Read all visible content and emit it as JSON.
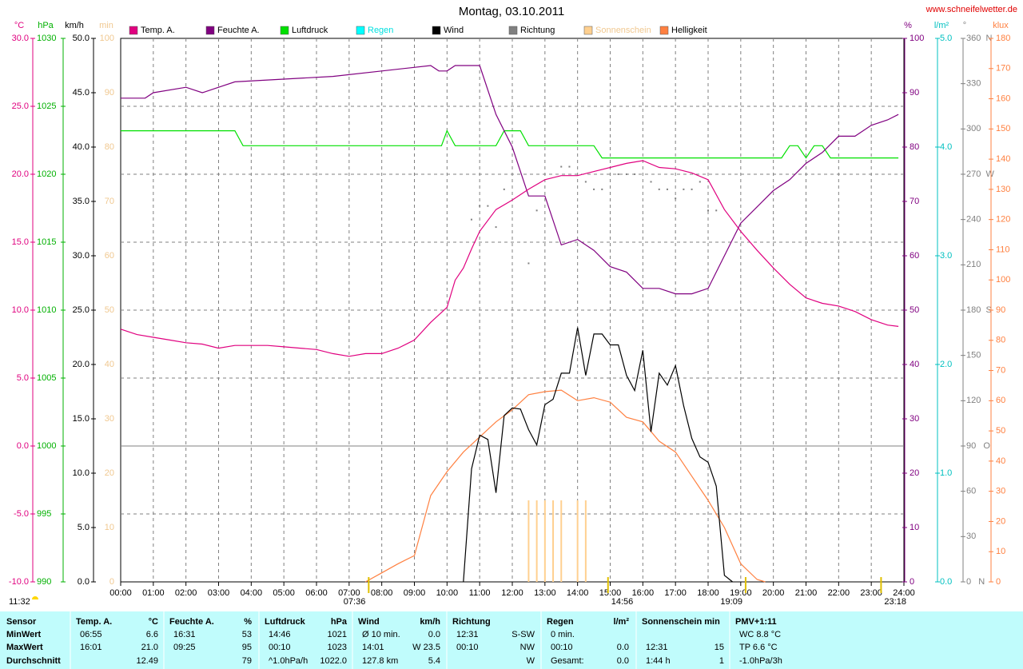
{
  "chart_data": {
    "type": "line",
    "title": "Montag, 03.10.2011",
    "source": "www.schneifelwetter.de",
    "xlim": [
      0,
      24
    ],
    "xticks": [
      {
        "value": 0,
        "label": "00:00"
      },
      {
        "value": 1,
        "label": "01:00"
      },
      {
        "value": 2,
        "label": "02:00"
      },
      {
        "value": 3,
        "label": "03:00"
      },
      {
        "value": 4,
        "label": "04:00"
      },
      {
        "value": 5,
        "label": "05:00"
      },
      {
        "value": 6,
        "label": "06:00"
      },
      {
        "value": 7,
        "label": "07:00"
      },
      {
        "value": 8,
        "label": "08:00"
      },
      {
        "value": 9,
        "label": "09:00"
      },
      {
        "value": 10,
        "label": "10:00"
      },
      {
        "value": 11,
        "label": "11:00"
      },
      {
        "value": 12,
        "label": "12:00"
      },
      {
        "value": 13,
        "label": "13:00"
      },
      {
        "value": 14,
        "label": "14:00"
      },
      {
        "value": 15,
        "label": "15:00"
      },
      {
        "value": 16,
        "label": "16:00"
      },
      {
        "value": 17,
        "label": "17:00"
      },
      {
        "value": 18,
        "label": "18:00"
      },
      {
        "value": 19,
        "label": "19:00"
      },
      {
        "value": 20,
        "label": "20:00"
      },
      {
        "value": 21,
        "label": "21:00"
      },
      {
        "value": 22,
        "label": "22:00"
      },
      {
        "value": 23,
        "label": "23:00"
      },
      {
        "value": 24,
        "label": "24:00"
      }
    ],
    "grid": true,
    "axes": [
      {
        "id": "temp",
        "unit": "°C",
        "color": "#e0007f",
        "ylim": [
          -10,
          30
        ],
        "yticks": [
          {
            "value": -10,
            "label": "-10.0"
          },
          {
            "value": -5,
            "label": "-5.0"
          },
          {
            "value": 0,
            "label": "0.0"
          },
          {
            "value": 5,
            "label": "5.0"
          },
          {
            "value": 10,
            "label": "10.0"
          },
          {
            "value": 15,
            "label": "15.0"
          },
          {
            "value": 20,
            "label": "20.0"
          },
          {
            "value": 25,
            "label": "25.0"
          },
          {
            "value": 30,
            "label": "30.0"
          }
        ]
      },
      {
        "id": "hpa",
        "unit": "hPa",
        "color": "#00b000",
        "ylim": [
          990,
          1030
        ],
        "yticks": [
          990,
          995,
          1000,
          1005,
          1010,
          1015,
          1020,
          1025,
          1030
        ]
      },
      {
        "id": "kmh",
        "unit": "km/h",
        "color": "#000000",
        "ylim": [
          0,
          50
        ],
        "yticks": [
          {
            "value": 0,
            "label": "0.0"
          },
          {
            "value": 5,
            "label": "5.0"
          },
          {
            "value": 10,
            "label": "10.0"
          },
          {
            "value": 15,
            "label": "15.0"
          },
          {
            "value": 20,
            "label": "20.0"
          },
          {
            "value": 25,
            "label": "25.0"
          },
          {
            "value": 30,
            "label": "30.0"
          },
          {
            "value": 35,
            "label": "35.0"
          },
          {
            "value": 40,
            "label": "40.0"
          },
          {
            "value": 45,
            "label": "45.0"
          },
          {
            "value": 50,
            "label": "50.0"
          }
        ]
      },
      {
        "id": "min",
        "unit": "min",
        "color": "#f0c890",
        "ylim": [
          0,
          100
        ],
        "yticks": [
          0,
          10,
          20,
          30,
          40,
          50,
          60,
          70,
          80,
          90,
          100
        ]
      },
      {
        "id": "pct",
        "unit": "%",
        "color": "#800080",
        "ylim": [
          0,
          100
        ],
        "yticks": [
          0,
          10,
          20,
          30,
          40,
          50,
          60,
          70,
          80,
          90,
          100
        ]
      },
      {
        "id": "lm2",
        "unit": "l/m²",
        "color": "#00c0c0",
        "ylim": [
          0,
          5
        ],
        "yticks": [
          {
            "value": 0,
            "label": "0.0"
          },
          {
            "value": 1,
            "label": "1.0"
          },
          {
            "value": 2,
            "label": "2.0"
          },
          {
            "value": 3,
            "label": "3.0"
          },
          {
            "value": 4,
            "label": "4.0"
          },
          {
            "value": 5,
            "label": "5.0"
          }
        ]
      },
      {
        "id": "deg",
        "unit": "°",
        "color": "#808080",
        "ylim": [
          0,
          360
        ],
        "yticks": [
          {
            "value": 0,
            "label": "0   N"
          },
          30,
          60,
          {
            "value": 90,
            "label": "90   O"
          },
          120,
          150,
          {
            "value": 180,
            "label": "180  S"
          },
          210,
          240,
          {
            "value": 270,
            "label": "270  W"
          },
          300,
          330,
          {
            "value": 360,
            "label": "360  N"
          }
        ]
      },
      {
        "id": "klux",
        "unit": "klux",
        "color": "#ff8040",
        "ylim": [
          0,
          180
        ],
        "yticks": [
          0,
          10,
          20,
          30,
          40,
          50,
          60,
          70,
          80,
          90,
          100,
          110,
          120,
          130,
          140,
          150,
          160,
          170,
          180
        ]
      }
    ],
    "series": [
      {
        "name": "Temp. A.",
        "color": "#e0007f",
        "axis": "temp",
        "type": "line",
        "x": [
          0,
          0.5,
          1,
          1.5,
          2,
          2.5,
          3,
          3.5,
          4,
          4.5,
          5,
          5.5,
          6,
          6.5,
          7,
          7.5,
          8,
          8.5,
          9,
          9.5,
          10,
          10.25,
          10.5,
          10.75,
          11,
          11.5,
          12,
          12.5,
          13,
          13.5,
          14,
          14.5,
          15,
          15.5,
          16,
          16.5,
          17,
          17.5,
          18,
          18.5,
          19,
          19.5,
          20,
          20.5,
          21,
          21.5,
          22,
          22.5,
          23,
          23.5,
          23.83
        ],
        "values": [
          8.6,
          8.2,
          8.0,
          7.8,
          7.6,
          7.5,
          7.2,
          7.4,
          7.4,
          7.4,
          7.3,
          7.2,
          7.1,
          6.8,
          6.6,
          6.8,
          6.8,
          7.2,
          7.8,
          9.1,
          10.2,
          12.2,
          13.1,
          14.5,
          15.8,
          17.4,
          18.1,
          18.9,
          19.6,
          19.9,
          19.9,
          20.2,
          20.5,
          20.8,
          21.0,
          20.5,
          20.4,
          20.1,
          19.6,
          17.4,
          15.8,
          14.4,
          13.1,
          11.9,
          10.9,
          10.5,
          10.3,
          9.9,
          9.3,
          8.9,
          8.8
        ]
      },
      {
        "name": "Feuchte A.",
        "color": "#800080",
        "axis": "pct",
        "type": "line",
        "x": [
          0,
          0.75,
          1,
          2,
          2.5,
          3,
          3.5,
          6.5,
          8,
          9.5,
          9.75,
          10,
          10.25,
          11,
          11.5,
          12,
          12.5,
          13,
          13.5,
          14,
          14.5,
          15,
          15.5,
          16,
          16.5,
          17,
          17.5,
          18,
          18.5,
          19,
          19.5,
          20,
          20.5,
          21,
          21.5,
          22,
          22.5,
          23,
          23.5,
          23.83
        ],
        "values": [
          89,
          89,
          90,
          91,
          90,
          91,
          92,
          93,
          94,
          95,
          94,
          94,
          95,
          95,
          86,
          80,
          71,
          71,
          62,
          63,
          61,
          58,
          57,
          54,
          54,
          53,
          53,
          54,
          60,
          66,
          69,
          72,
          74,
          77,
          79,
          82,
          82,
          84,
          85,
          86
        ]
      },
      {
        "name": "Luftdruck",
        "color": "#00e000",
        "axis": "hpa",
        "type": "line",
        "x": [
          0,
          3.5,
          3.75,
          9.83,
          10,
          10.25,
          11.5,
          11.75,
          12.25,
          12.5,
          14.5,
          14.75,
          20.25,
          20.5,
          20.75,
          21,
          21.25,
          21.5,
          21.75,
          23.83
        ],
        "values": [
          1023.2,
          1023.2,
          1022.1,
          1022.1,
          1023.2,
          1022.1,
          1022.1,
          1023.2,
          1023.2,
          1022.1,
          1022.1,
          1021.2,
          1021.2,
          1022.1,
          1022.1,
          1021.2,
          1022.1,
          1022.1,
          1021.2,
          1021.2
        ]
      },
      {
        "name": "Regen",
        "color": "#00ffff",
        "label_color": "#00e0e0",
        "axis": "lm2",
        "type": "line",
        "x": [],
        "values": []
      },
      {
        "name": "Wind",
        "color": "#000000",
        "axis": "kmh",
        "type": "line",
        "x": [
          10.5,
          10.75,
          11,
          11.25,
          11.5,
          11.75,
          12,
          12.25,
          12.5,
          12.75,
          13,
          13.25,
          13.5,
          13.75,
          14,
          14.25,
          14.5,
          14.75,
          15,
          15.25,
          15.5,
          15.75,
          16,
          16.25,
          16.5,
          16.75,
          17,
          17.25,
          17.5,
          17.75,
          18,
          18.25,
          18.5,
          18.75
        ],
        "values": [
          0,
          10.4,
          13.5,
          13.1,
          8.2,
          15.3,
          16.0,
          15.9,
          14.0,
          12.6,
          16.3,
          16.8,
          19.2,
          19.2,
          23.4,
          19.0,
          22.8,
          22.8,
          21.8,
          21.8,
          19.0,
          17.6,
          21.3,
          13.8,
          19.2,
          18.1,
          19.9,
          16.2,
          13.2,
          11.5,
          11.0,
          8.8,
          0.6,
          0
        ]
      },
      {
        "name": "Richtung",
        "color": "#808080",
        "axis": "deg",
        "type": "scatter",
        "x": [
          10.75,
          11,
          11.25,
          11.5,
          11.75,
          12.5,
          12.75,
          13.5,
          13.75,
          14.25,
          14.5,
          14.75,
          15.25,
          15.5,
          15.75,
          16.25,
          16.5,
          16.75,
          17,
          17.25,
          17.5,
          17.75,
          18,
          18.25
        ],
        "values": [
          240,
          249,
          249,
          235,
          260,
          211,
          246,
          275,
          275,
          265,
          260,
          260,
          270,
          270,
          270,
          265,
          260,
          260,
          254,
          260,
          260,
          265,
          246,
          246
        ]
      },
      {
        "name": "Sonnenschein",
        "color": "#ffd090",
        "label_color": "#f0c890",
        "axis": "min",
        "type": "bar",
        "x": [
          12.5,
          12.75,
          13,
          13.25,
          13.5,
          14,
          14.25
        ],
        "values": [
          15,
          15,
          15,
          15,
          15,
          15,
          15
        ]
      },
      {
        "name": "Helligkeit",
        "color": "#ff8040",
        "axis": "klux",
        "type": "line",
        "x": [
          7.5,
          8,
          8.5,
          9,
          9.5,
          10,
          10.5,
          11,
          11.5,
          12,
          12.5,
          13,
          13.5,
          14,
          14.5,
          15,
          15.5,
          16,
          16.5,
          17,
          17.5,
          18,
          18.5,
          19,
          19.5,
          19.75
        ],
        "values": [
          0,
          3,
          6,
          8.7,
          28.6,
          36.5,
          43,
          48,
          53,
          57,
          62,
          63,
          63.5,
          60,
          61,
          59.5,
          54.5,
          53,
          46.6,
          43,
          35,
          27,
          18,
          6,
          0.8,
          0
        ]
      }
    ],
    "annotations": [
      {
        "x": 7.6,
        "label": "07:36"
      },
      {
        "x": 14.933,
        "label": "14:56"
      },
      {
        "x": 19.15,
        "label": "19:09"
      },
      {
        "x": 23.3,
        "label": "23:18"
      }
    ],
    "moonrise": "11:32"
  },
  "table": {
    "row_labels": [
      "Sensor",
      "MinWert",
      "MaxWert",
      "Durchschnitt"
    ],
    "groups": [
      {
        "name": "Temp. A.",
        "unit": "°C",
        "rows": [
          [
            "06:55",
            "6.6"
          ],
          [
            "16:01",
            "21.0"
          ],
          [
            null,
            "12.49"
          ]
        ]
      },
      {
        "name": "Feuchte A.",
        "unit": "%",
        "rows": [
          [
            "16:31",
            "53"
          ],
          [
            "09:25",
            "95"
          ],
          [
            null,
            "79"
          ]
        ]
      },
      {
        "name": "Luftdruck",
        "unit": "hPa",
        "rows": [
          [
            "14:46",
            "1021"
          ],
          [
            "00:10",
            "1023"
          ],
          [
            "^1.0hPa/h",
            "1022.0"
          ]
        ]
      },
      {
        "name": "Wind",
        "unit": "km/h",
        "rows": [
          [
            "Ø 10 min.",
            "0.0"
          ],
          [
            "14:01",
            "W 23.5"
          ],
          [
            "127.8 km",
            "5.4"
          ]
        ]
      },
      {
        "name": "Richtung",
        "unit": null,
        "rows": [
          [
            "12:31",
            "S-SW"
          ],
          [
            "00:10",
            "NW"
          ],
          [
            null,
            "W"
          ]
        ]
      },
      {
        "name": "Regen",
        "unit": "l/m²",
        "rows": [
          [
            "0 min.",
            null
          ],
          [
            "00:10",
            "0.0"
          ],
          [
            "Gesamt:",
            "0.0"
          ]
        ]
      },
      {
        "name": "Sonnenschein min",
        "unit": null,
        "rows": [
          [
            null,
            null
          ],
          [
            "12:31",
            "15"
          ],
          [
            "1:44 h",
            "1"
          ]
        ]
      },
      {
        "name": "PMV+1:11",
        "unit": null,
        "rows": [
          [
            "WC 8.8 °C",
            null
          ],
          [
            "TP 6.6 °C",
            null
          ],
          [
            "-1.0hPa/3h",
            null
          ]
        ]
      }
    ]
  }
}
